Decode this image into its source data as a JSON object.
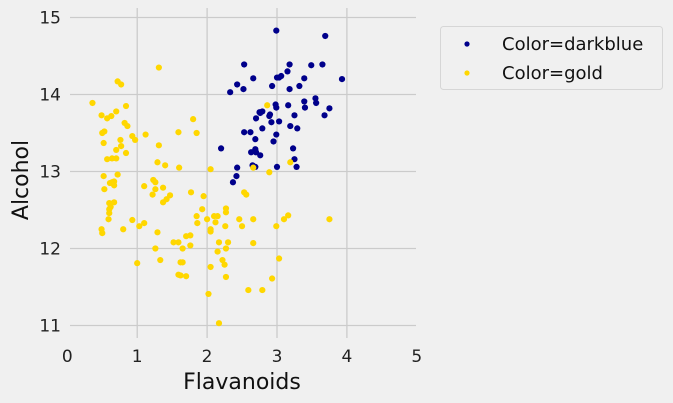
{
  "chart_data": {
    "type": "scatter",
    "title": "",
    "xlabel": "Flavanoids",
    "ylabel": "Alcohol",
    "xlim": [
      0,
      5
    ],
    "ylim": [
      11,
      15
    ],
    "xticks": [
      "0",
      "1",
      "2",
      "3",
      "4",
      "5"
    ],
    "yticks": [
      "11",
      "12",
      "13",
      "14",
      "15"
    ],
    "grid": true,
    "legend_position": "outside-top-right",
    "series": [
      {
        "name": "Color=darkblue",
        "color": "#00008b",
        "points": [
          [
            2.99,
            14.83
          ],
          [
            3.69,
            14.76
          ],
          [
            2.53,
            14.39
          ],
          [
            3.18,
            14.39
          ],
          [
            3.49,
            14.38
          ],
          [
            3.65,
            14.39
          ],
          [
            3.15,
            14.3
          ],
          [
            2.66,
            14.21
          ],
          [
            3.0,
            14.22
          ],
          [
            3.03,
            14.22
          ],
          [
            3.06,
            14.24
          ],
          [
            3.39,
            14.21
          ],
          [
            3.93,
            14.2
          ],
          [
            2.43,
            14.13
          ],
          [
            2.52,
            14.07
          ],
          [
            2.33,
            14.03
          ],
          [
            2.93,
            14.11
          ],
          [
            3.18,
            14.07
          ],
          [
            3.32,
            14.11
          ],
          [
            2.98,
            13.87
          ],
          [
            2.99,
            13.83
          ],
          [
            3.16,
            13.86
          ],
          [
            3.39,
            13.91
          ],
          [
            3.55,
            13.95
          ],
          [
            3.56,
            13.89
          ],
          [
            3.4,
            13.83
          ],
          [
            3.75,
            13.82
          ],
          [
            3.68,
            13.73
          ],
          [
            2.75,
            13.77
          ],
          [
            2.79,
            13.78
          ],
          [
            2.76,
            13.76
          ],
          [
            2.9,
            13.74
          ],
          [
            2.89,
            13.72
          ],
          [
            2.7,
            13.69
          ],
          [
            3.25,
            13.73
          ],
          [
            2.92,
            13.64
          ],
          [
            3.03,
            13.65
          ],
          [
            2.79,
            13.56
          ],
          [
            2.53,
            13.51
          ],
          [
            2.62,
            13.51
          ],
          [
            3.19,
            13.59
          ],
          [
            3.29,
            13.56
          ],
          [
            2.99,
            13.48
          ],
          [
            2.69,
            13.42
          ],
          [
            2.95,
            13.39
          ],
          [
            2.2,
            13.3
          ],
          [
            2.69,
            13.29
          ],
          [
            2.63,
            13.25
          ],
          [
            2.7,
            13.25
          ],
          [
            2.76,
            13.21
          ],
          [
            3.23,
            13.3
          ],
          [
            3.25,
            13.16
          ],
          [
            2.43,
            13.05
          ],
          [
            2.65,
            13.08
          ],
          [
            2.69,
            13.06
          ],
          [
            3.0,
            13.06
          ],
          [
            3.28,
            13.06
          ],
          [
            2.42,
            12.94
          ],
          [
            2.37,
            12.86
          ]
        ]
      },
      {
        "name": "Color=gold",
        "color": "#ffd700",
        "points": [
          [
            1.31,
            14.35
          ],
          [
            0.72,
            14.17
          ],
          [
            0.77,
            14.13
          ],
          [
            0.36,
            13.89
          ],
          [
            0.84,
            13.85
          ],
          [
            0.49,
            13.73
          ],
          [
            0.7,
            13.78
          ],
          [
            0.57,
            13.69
          ],
          [
            0.63,
            13.72
          ],
          [
            1.8,
            13.68
          ],
          [
            0.82,
            13.63
          ],
          [
            0.86,
            13.59
          ],
          [
            0.5,
            13.5
          ],
          [
            0.53,
            13.52
          ],
          [
            1.59,
            13.51
          ],
          [
            1.85,
            13.5
          ],
          [
            1.12,
            13.48
          ],
          [
            0.93,
            13.46
          ],
          [
            0.97,
            13.41
          ],
          [
            0.76,
            13.41
          ],
          [
            0.52,
            13.37
          ],
          [
            0.77,
            13.33
          ],
          [
            1.31,
            13.34
          ],
          [
            0.7,
            13.28
          ],
          [
            0.84,
            13.24
          ],
          [
            0.57,
            13.16
          ],
          [
            0.64,
            13.17
          ],
          [
            0.7,
            13.17
          ],
          [
            1.29,
            13.12
          ],
          [
            1.4,
            13.08
          ],
          [
            1.6,
            13.05
          ],
          [
            0.52,
            12.94
          ],
          [
            0.72,
            12.96
          ],
          [
            0.61,
            12.85
          ],
          [
            0.64,
            12.86
          ],
          [
            0.67,
            12.87
          ],
          [
            0.67,
            12.82
          ],
          [
            0.53,
            12.77
          ],
          [
            1.23,
            12.89
          ],
          [
            1.26,
            12.86
          ],
          [
            1.1,
            12.81
          ],
          [
            1.37,
            12.79
          ],
          [
            1.26,
            12.77
          ],
          [
            1.22,
            12.7
          ],
          [
            1.47,
            12.69
          ],
          [
            1.77,
            12.73
          ],
          [
            1.42,
            12.64
          ],
          [
            1.37,
            12.6
          ],
          [
            0.6,
            12.59
          ],
          [
            0.67,
            12.6
          ],
          [
            0.62,
            12.54
          ],
          [
            0.6,
            12.51
          ],
          [
            0.6,
            12.46
          ],
          [
            0.59,
            12.38
          ],
          [
            0.93,
            12.37
          ],
          [
            1.1,
            12.33
          ],
          [
            1.03,
            12.29
          ],
          [
            0.8,
            12.25
          ],
          [
            0.49,
            12.25
          ],
          [
            0.5,
            12.2
          ],
          [
            1.29,
            12.21
          ],
          [
            1.85,
            12.42
          ],
          [
            1.86,
            12.33
          ],
          [
            1.52,
            12.08
          ],
          [
            1.59,
            12.08
          ],
          [
            1.7,
            12.16
          ],
          [
            1.76,
            12.17
          ],
          [
            1.76,
            12.04
          ],
          [
            1.65,
            12.0
          ],
          [
            1.26,
            12.0
          ],
          [
            1.33,
            11.85
          ],
          [
            1.0,
            11.81
          ],
          [
            1.62,
            11.82
          ],
          [
            1.65,
            11.82
          ],
          [
            1.59,
            11.66
          ],
          [
            1.62,
            11.65
          ],
          [
            1.7,
            11.64
          ],
          [
            2.86,
            13.86
          ],
          [
            2.05,
            13.03
          ],
          [
            2.66,
            13.05
          ],
          [
            2.89,
            12.99
          ],
          [
            3.19,
            13.12
          ],
          [
            1.95,
            12.68
          ],
          [
            2.53,
            12.73
          ],
          [
            2.56,
            12.7
          ],
          [
            1.93,
            12.51
          ],
          [
            2.27,
            12.52
          ],
          [
            2.27,
            12.47
          ],
          [
            3.16,
            12.43
          ],
          [
            3.1,
            12.38
          ],
          [
            3.75,
            12.38
          ],
          [
            2.0,
            12.38
          ],
          [
            2.1,
            12.42
          ],
          [
            2.15,
            12.42
          ],
          [
            2.12,
            12.34
          ],
          [
            2.46,
            12.38
          ],
          [
            2.66,
            12.38
          ],
          [
            2.26,
            12.29
          ],
          [
            2.5,
            12.29
          ],
          [
            2.99,
            12.29
          ],
          [
            2.05,
            12.25
          ],
          [
            2.05,
            12.22
          ],
          [
            2.17,
            12.08
          ],
          [
            2.3,
            12.08
          ],
          [
            2.66,
            12.07
          ],
          [
            2.27,
            12.0
          ],
          [
            2.15,
            11.96
          ],
          [
            3.03,
            11.87
          ],
          [
            2.22,
            11.85
          ],
          [
            2.25,
            11.79
          ],
          [
            2.05,
            11.76
          ],
          [
            2.27,
            11.63
          ],
          [
            2.93,
            11.61
          ],
          [
            2.59,
            11.46
          ],
          [
            2.79,
            11.46
          ],
          [
            2.02,
            11.41
          ],
          [
            2.17,
            11.03
          ]
        ]
      }
    ]
  }
}
